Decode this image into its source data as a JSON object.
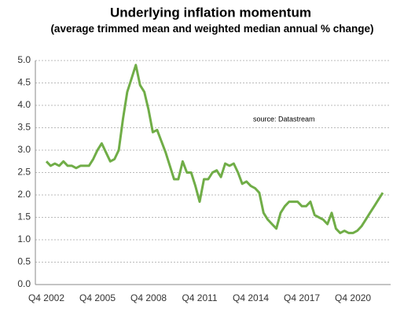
{
  "chart_data": {
    "type": "line",
    "title": "Underlying inflation momentum",
    "subtitle": "(average trimmed mean and weighted median annual % change)",
    "annotation": "source:  Datastream",
    "categories": [
      "Q4 2002",
      null,
      null,
      null,
      null,
      null,
      null,
      null,
      null,
      null,
      null,
      null,
      "Q4 2005",
      null,
      null,
      null,
      null,
      null,
      null,
      null,
      null,
      null,
      null,
      null,
      "Q4 2008",
      null,
      null,
      null,
      null,
      null,
      null,
      null,
      null,
      null,
      null,
      null,
      "Q4 2011",
      null,
      null,
      null,
      null,
      null,
      null,
      null,
      null,
      null,
      null,
      null,
      "Q4 2014",
      null,
      null,
      null,
      null,
      null,
      null,
      null,
      null,
      null,
      null,
      null,
      "Q4 2017",
      null,
      null,
      null,
      null,
      null,
      null,
      null,
      null,
      null,
      null,
      null,
      "Q4 2020",
      null,
      null,
      null,
      null,
      null,
      null,
      null
    ],
    "series": [
      {
        "color": "#70ad47",
        "values": [
          2.75,
          2.65,
          2.7,
          2.65,
          2.75,
          2.65,
          2.65,
          2.6,
          2.65,
          2.65,
          2.65,
          2.8,
          3.0,
          3.15,
          2.95,
          2.75,
          2.8,
          3.0,
          3.7,
          4.3,
          4.6,
          4.9,
          4.45,
          4.3,
          3.9,
          3.4,
          3.45,
          3.2,
          2.95,
          2.65,
          2.35,
          2.35,
          2.75,
          2.5,
          2.5,
          2.2,
          1.85,
          2.35,
          2.35,
          2.5,
          2.55,
          2.4,
          2.7,
          2.65,
          2.7,
          2.5,
          2.25,
          2.3,
          2.2,
          2.15,
          2.05,
          1.6,
          1.45,
          1.35,
          1.25,
          1.6,
          1.75,
          1.85,
          1.85,
          1.85,
          1.75,
          1.75,
          1.85,
          1.55,
          1.5,
          1.45,
          1.35,
          1.6,
          1.25,
          1.15,
          1.2,
          1.15,
          1.15,
          1.2,
          1.3,
          1.45,
          1.6,
          1.75,
          1.9,
          2.05
        ]
      }
    ],
    "ylim": [
      0,
      5
    ],
    "yticks": [
      {
        "value": 0,
        "label": "0.0"
      },
      0.5,
      {
        "value": 1,
        "label": "1.0"
      },
      1.5,
      {
        "value": 2,
        "label": "2.0"
      },
      2.5,
      {
        "value": 3,
        "label": "3.0"
      },
      3.5,
      {
        "value": 4,
        "label": "4.0"
      },
      4.5,
      {
        "value": 5,
        "label": "5.0"
      }
    ],
    "grid": true
  }
}
